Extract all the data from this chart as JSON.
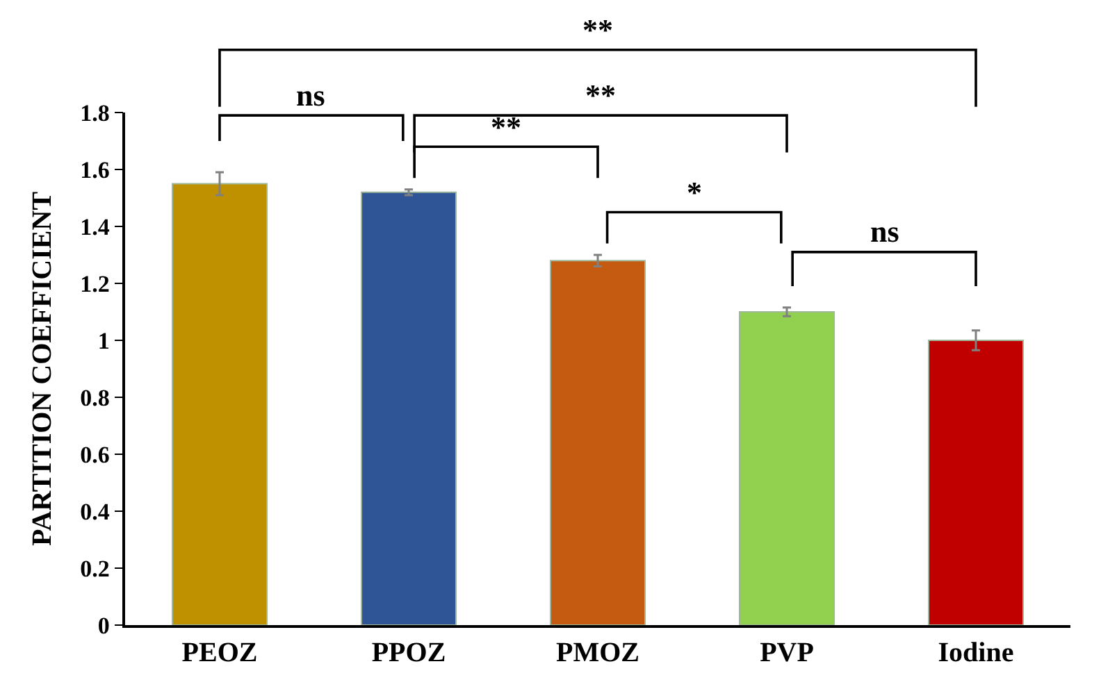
{
  "chart_data": {
    "type": "bar",
    "ylabel": "PARTITION COEFFICIENT",
    "categories": [
      "PEOZ",
      "PPOZ",
      "PMOZ",
      "PVP",
      "Iodine"
    ],
    "values": [
      1.55,
      1.52,
      1.28,
      1.1,
      1.0
    ],
    "errors": [
      0.04,
      0.01,
      0.02,
      0.015,
      0.035
    ],
    "colors": [
      "#bf9000",
      "#2f5597",
      "#c55a11",
      "#92d050",
      "#c00000"
    ],
    "ylim": [
      0,
      1.8
    ],
    "yticks": [
      0,
      0.2,
      0.4,
      0.6,
      0.8,
      1,
      1.2,
      1.4,
      1.6,
      1.8
    ],
    "legend": false,
    "annotations": [
      "**",
      "ns",
      "**",
      "**",
      "*",
      "ns"
    ]
  }
}
